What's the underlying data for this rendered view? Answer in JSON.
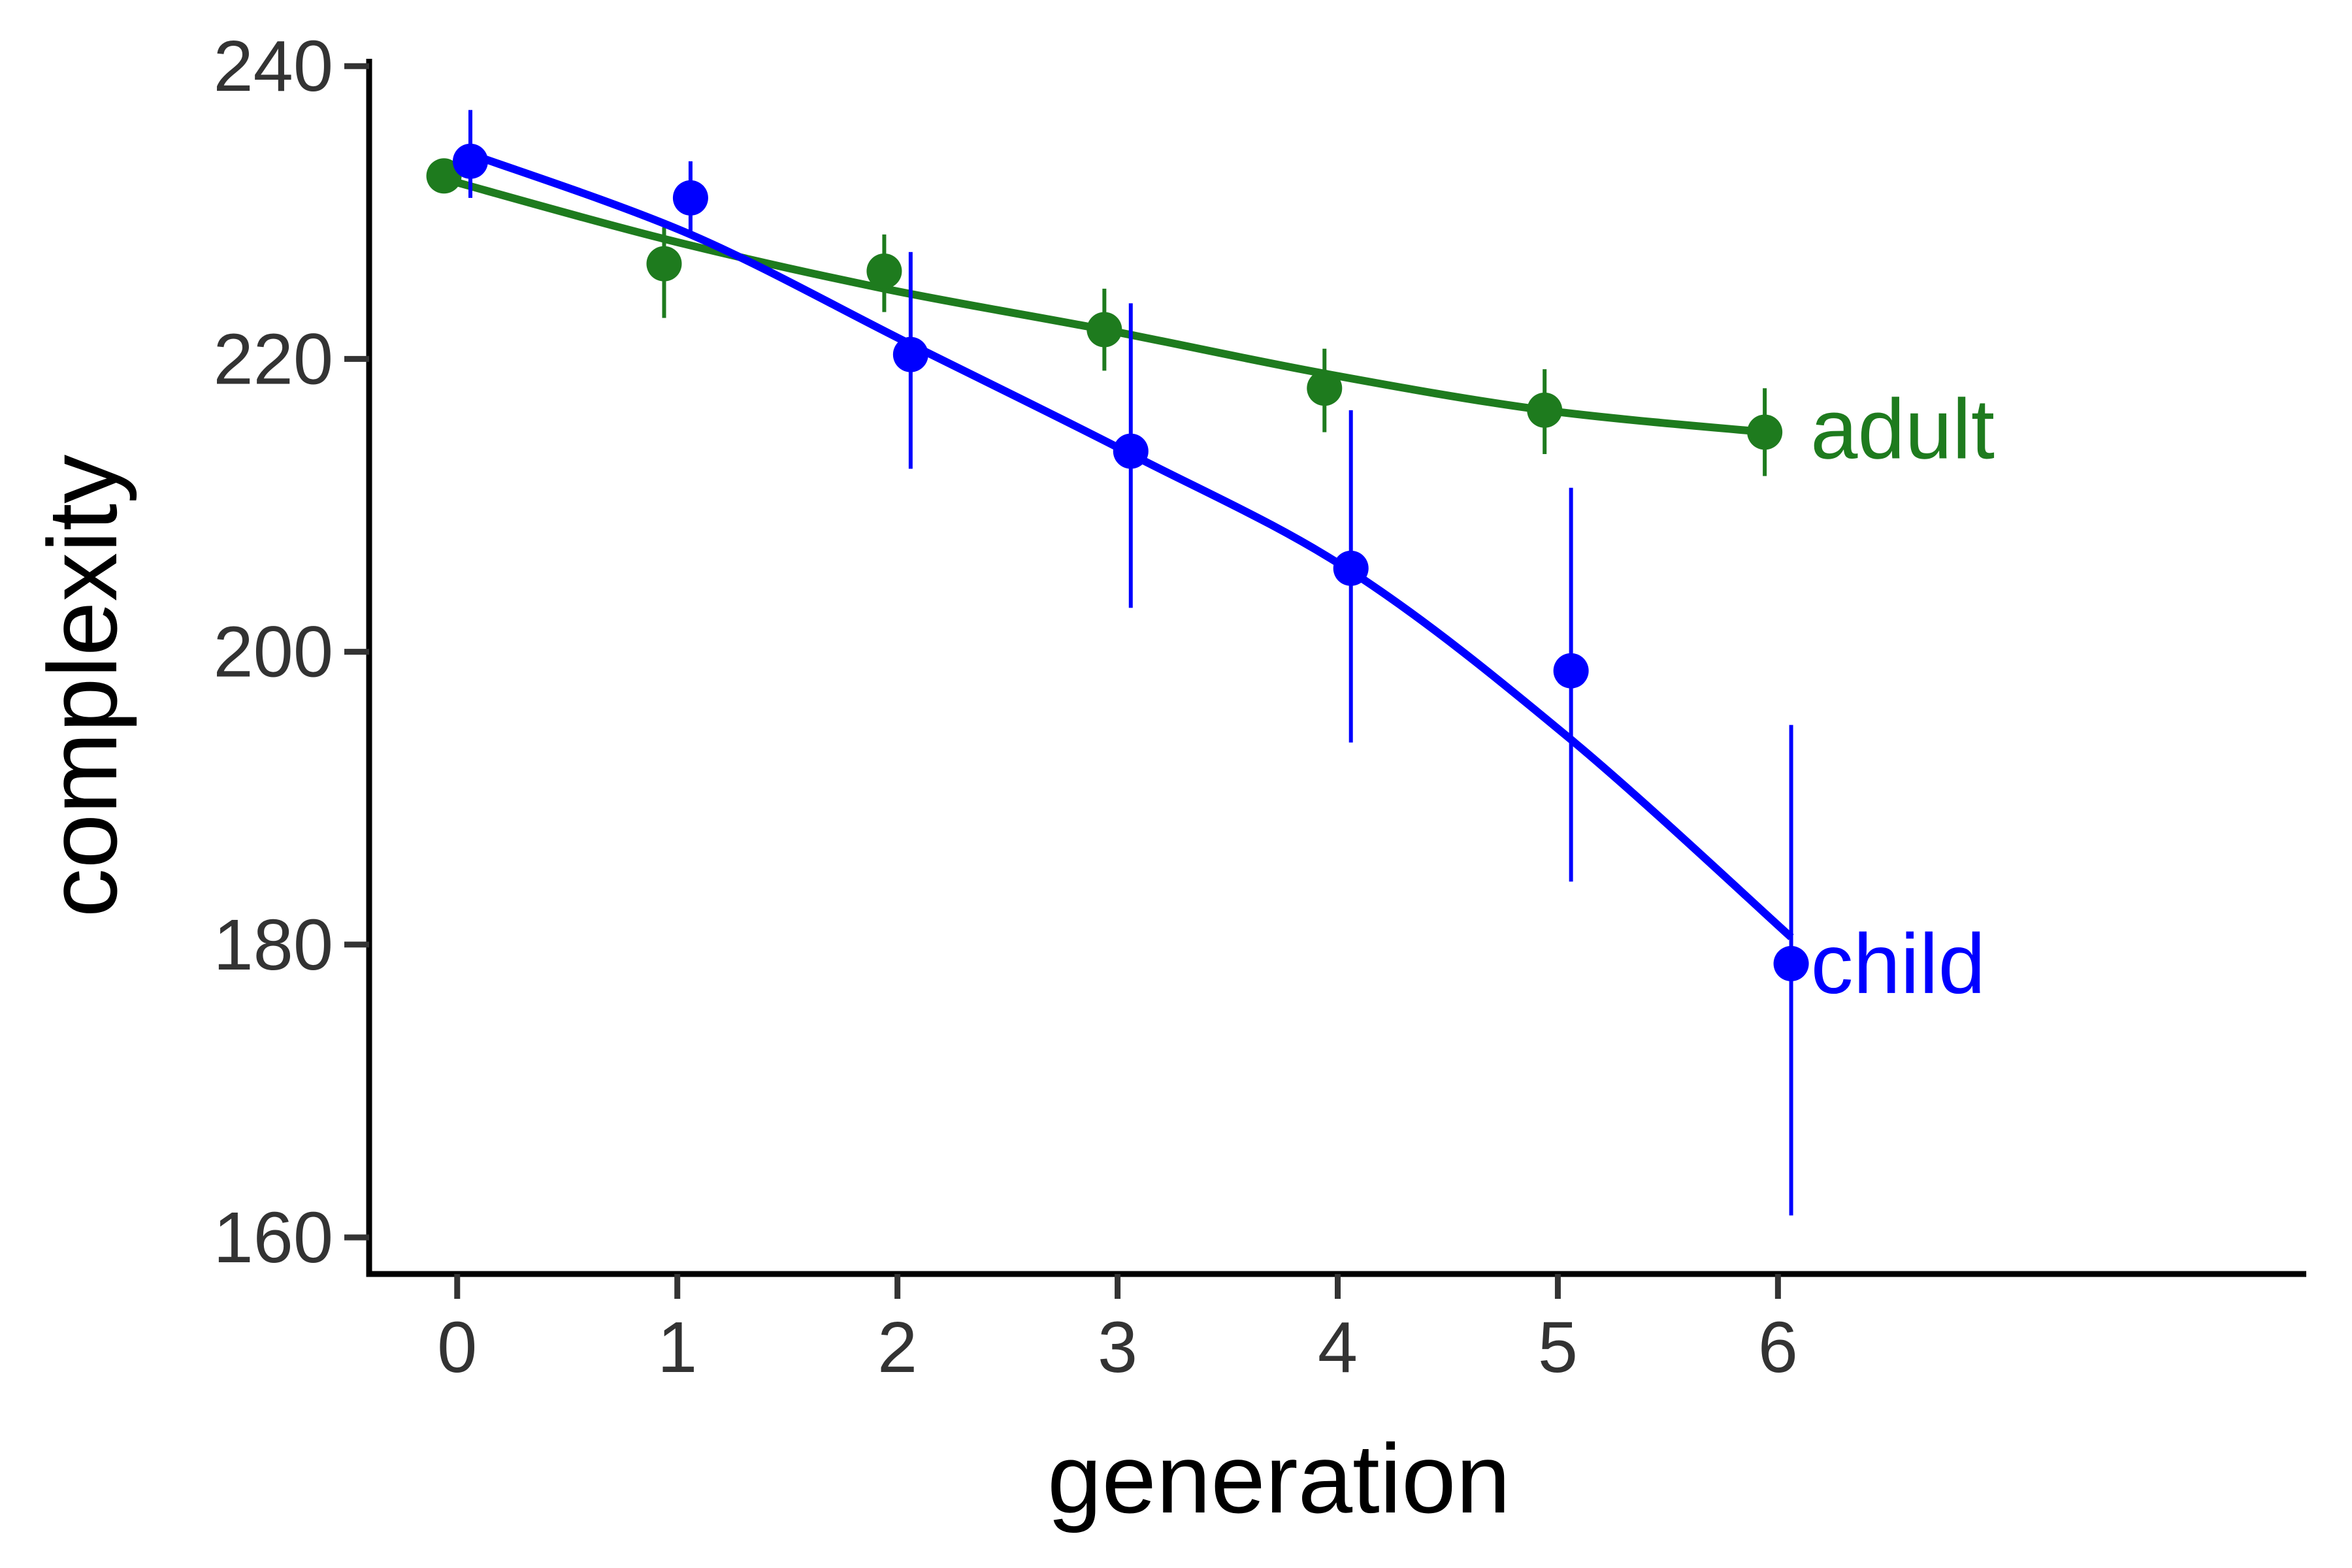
{
  "chart_data": {
    "type": "line",
    "xlabel": "generation",
    "ylabel": "complexity",
    "xlim": [
      -0.4,
      8.4
    ],
    "ylim": [
      157.5,
      240.5
    ],
    "x_ticks": [
      0,
      1,
      2,
      3,
      4,
      5,
      6
    ],
    "y_ticks": [
      160,
      180,
      200,
      220,
      240
    ],
    "grid": false,
    "legend": "none (series labelled directly at line ends)",
    "series": [
      {
        "name": "adult",
        "color": "#1e7b1e",
        "points": [
          {
            "x": 0,
            "y": 232.5,
            "lo": 231.5,
            "hi": 233.5
          },
          {
            "x": 1,
            "y": 226.5,
            "lo": 222.8,
            "hi": 229.0
          },
          {
            "x": 2,
            "y": 226.0,
            "lo": 223.2,
            "hi": 228.5
          },
          {
            "x": 3,
            "y": 222.0,
            "lo": 219.2,
            "hi": 224.8
          },
          {
            "x": 4,
            "y": 218.0,
            "lo": 215.0,
            "hi": 220.7
          },
          {
            "x": 5,
            "y": 216.5,
            "lo": 213.5,
            "hi": 219.3
          },
          {
            "x": 6,
            "y": 215.0,
            "lo": 212.0,
            "hi": 218.0
          }
        ],
        "fit": [
          {
            "x": 0,
            "y": 232.3
          },
          {
            "x": 1,
            "y": 228.2
          },
          {
            "x": 2,
            "y": 224.8
          },
          {
            "x": 3,
            "y": 222.0
          },
          {
            "x": 4,
            "y": 219.0
          },
          {
            "x": 5,
            "y": 216.5
          },
          {
            "x": 6,
            "y": 215.0
          }
        ]
      },
      {
        "name": "child",
        "color": "#0000ff",
        "points": [
          {
            "x": 0,
            "y": 233.5,
            "lo": 231.0,
            "hi": 237.0
          },
          {
            "x": 1,
            "y": 231.0,
            "lo": 228.5,
            "hi": 233.5
          },
          {
            "x": 2,
            "y": 220.3,
            "lo": 212.5,
            "hi": 227.3
          },
          {
            "x": 3,
            "y": 213.7,
            "lo": 203.0,
            "hi": 223.8
          },
          {
            "x": 4,
            "y": 205.7,
            "lo": 193.8,
            "hi": 216.5
          },
          {
            "x": 5,
            "y": 198.7,
            "lo": 184.3,
            "hi": 211.2
          },
          {
            "x": 6,
            "y": 178.7,
            "lo": 161.5,
            "hi": 195.0
          }
        ],
        "fit": [
          {
            "x": 0,
            "y": 234.0
          },
          {
            "x": 1,
            "y": 228.5
          },
          {
            "x": 2,
            "y": 221.0
          },
          {
            "x": 3,
            "y": 213.5
          },
          {
            "x": 4,
            "y": 205.5
          },
          {
            "x": 5,
            "y": 194.0
          },
          {
            "x": 6,
            "y": 180.5
          }
        ]
      }
    ]
  }
}
